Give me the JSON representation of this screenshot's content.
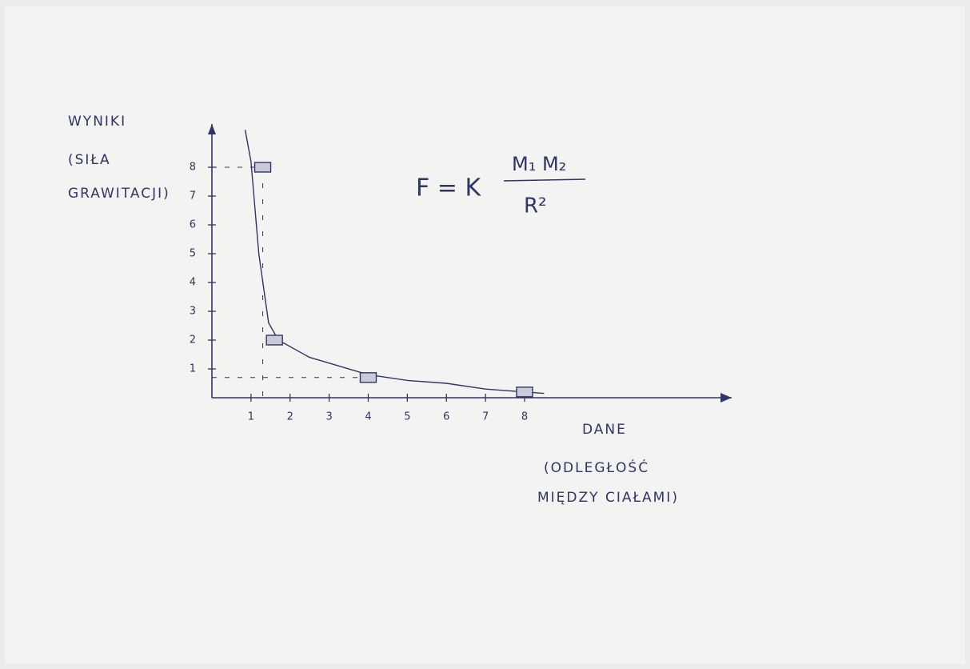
{
  "chart_data": {
    "type": "scatter",
    "y_label_lines": [
      "WYNIKI",
      "(SIŁA",
      "GRAWITACJI)"
    ],
    "x_label_lines": [
      "DANE",
      "(ODLEGŁOŚĆ",
      "MIĘDZY CIAŁAMI)"
    ],
    "formula": {
      "left": "F = K",
      "numerator": "M₁ M₂",
      "denominator": "R²"
    },
    "xlim": [
      0,
      13.3
    ],
    "ylim": [
      0,
      9.5
    ],
    "xticks": [
      1,
      2,
      3,
      4,
      5,
      6,
      7,
      8
    ],
    "yticks": [
      1,
      2,
      3,
      4,
      5,
      6,
      7,
      8
    ],
    "color": "#2f3566",
    "points": {
      "x": [
        1.3,
        1.6,
        4,
        8
      ],
      "values": [
        8,
        2,
        0.7,
        0.2
      ]
    },
    "curve": {
      "x": [
        0.85,
        1.0,
        1.2,
        1.45,
        1.7,
        2.5,
        4,
        5,
        6,
        7,
        8,
        8.5
      ],
      "values": [
        9.3,
        8.2,
        5,
        2.6,
        2.0,
        1.4,
        0.8,
        0.6,
        0.5,
        0.3,
        0.2,
        0.15
      ]
    }
  }
}
